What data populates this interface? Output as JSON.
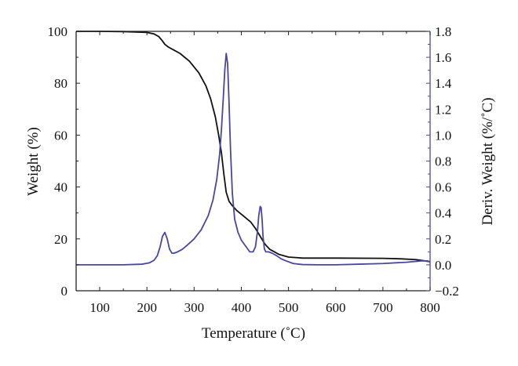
{
  "chart_data": {
    "type": "line",
    "xlabel": "Temperature (˚C)",
    "ylabel_left": "Weight (%)",
    "ylabel_right": "Deriv. Weight (%/˚C)",
    "xlim": [
      50,
      800
    ],
    "ylim_left": [
      0,
      100
    ],
    "ylim_right": [
      -0.2,
      1.8
    ],
    "x_ticks": [
      100,
      200,
      300,
      400,
      500,
      600,
      700,
      800
    ],
    "y_left_ticks": [
      0,
      20,
      40,
      60,
      80,
      100
    ],
    "y_right_ticks": [
      -0.2,
      0.0,
      0.2,
      0.4,
      0.6,
      0.8,
      1.0,
      1.2,
      1.4,
      1.6,
      1.8
    ],
    "y_right_tick_labels": [
      "−0.2",
      "0.0",
      "0.2",
      "0.4",
      "0.6",
      "0.8",
      "1.0",
      "1.2",
      "1.4",
      "1.6",
      "1.8"
    ],
    "grid": false,
    "colors": {
      "weight": "#111111",
      "deriv": "#4a46a0",
      "axis": "#222222",
      "right_axis": "#4a46a0"
    },
    "series": [
      {
        "axis": "left",
        "x": [
          50,
          100,
          150,
          200,
          215,
          225,
          232,
          238,
          245,
          255,
          270,
          290,
          310,
          325,
          335,
          345,
          352,
          358,
          363,
          368,
          374,
          380,
          390,
          400,
          410,
          420,
          430,
          440,
          450,
          460,
          470,
          480,
          500,
          530,
          600,
          700,
          740,
          770,
          790,
          800
        ],
        "y": [
          100,
          100,
          99.9,
          99.6,
          99,
          98,
          96.5,
          95,
          94,
          93,
          91.5,
          88.5,
          84,
          79,
          74,
          67,
          60,
          53,
          45,
          38,
          34.5,
          33,
          31,
          29.5,
          28,
          26.5,
          24,
          21,
          18,
          16,
          15,
          14,
          13,
          12.6,
          12.6,
          12.5,
          12.3,
          12,
          11.5,
          11.2
        ]
      },
      {
        "axis": "right",
        "x": [
          50,
          100,
          150,
          190,
          205,
          215,
          222,
          228,
          233,
          238,
          243,
          248,
          253,
          258,
          265,
          275,
          285,
          300,
          315,
          330,
          340,
          348,
          354,
          358,
          362,
          365,
          368,
          371,
          374,
          377,
          381,
          386,
          393,
          400,
          410,
          418,
          425,
          430,
          434,
          437,
          440,
          442,
          444,
          446,
          449,
          452,
          458,
          465,
          475,
          485,
          495,
          510,
          530,
          560,
          600,
          650,
          700,
          750,
          780,
          795,
          800
        ],
        "y": [
          0.0,
          0.0,
          0.0,
          0.005,
          0.015,
          0.035,
          0.07,
          0.14,
          0.22,
          0.25,
          0.2,
          0.12,
          0.09,
          0.09,
          0.1,
          0.12,
          0.15,
          0.2,
          0.27,
          0.38,
          0.5,
          0.66,
          0.85,
          1.05,
          1.3,
          1.5,
          1.63,
          1.55,
          1.25,
          0.9,
          0.55,
          0.35,
          0.25,
          0.19,
          0.14,
          0.1,
          0.1,
          0.14,
          0.25,
          0.38,
          0.45,
          0.44,
          0.35,
          0.22,
          0.12,
          0.1,
          0.1,
          0.09,
          0.07,
          0.045,
          0.03,
          0.01,
          0.002,
          0.0,
          0.0,
          0.005,
          0.01,
          0.02,
          0.03,
          0.03,
          0.02
        ]
      }
    ]
  }
}
